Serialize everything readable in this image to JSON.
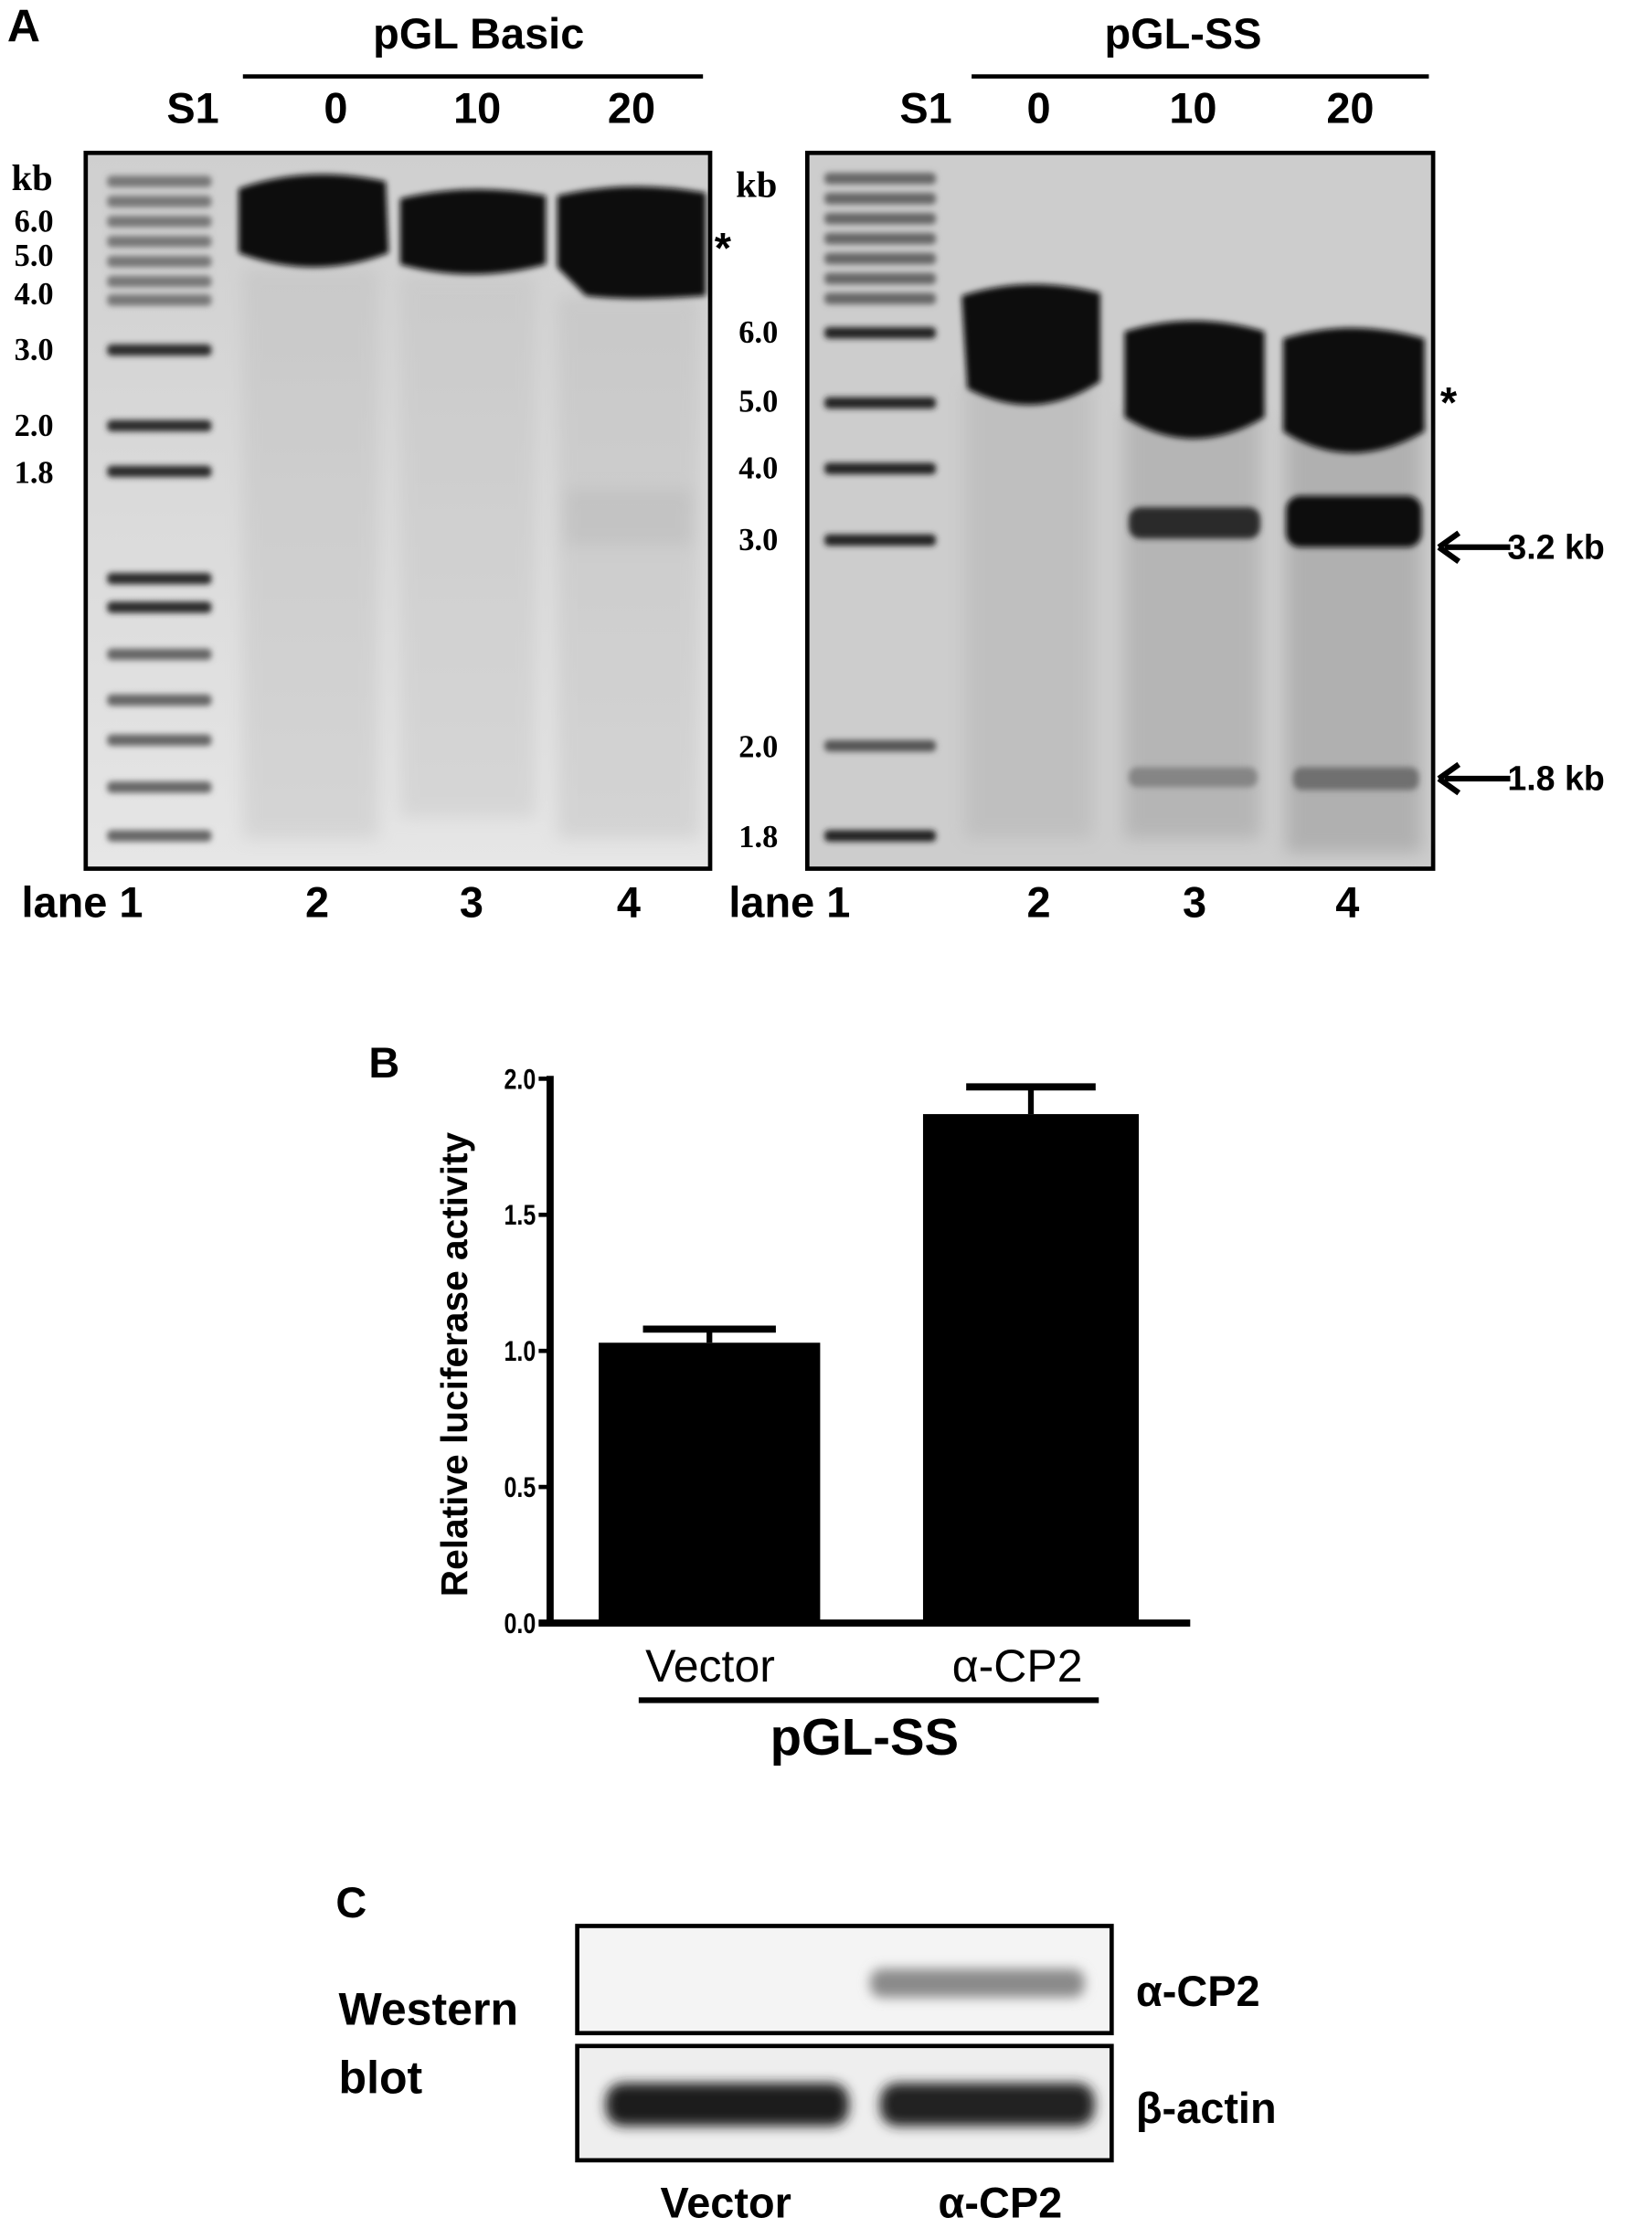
{
  "panel_a": {
    "label": "A",
    "left_gel": {
      "title": "pGL Basic",
      "marker_label": "S1",
      "conditions": [
        "0",
        "10",
        "20"
      ],
      "kb_label": "kb",
      "size_markers": [
        "6.0",
        "5.0",
        "4.0",
        "3.0",
        "2.0",
        "1.8"
      ],
      "lane_label": "lane 1",
      "lane_numbers": [
        "2",
        "3",
        "4"
      ],
      "asterisk": "*"
    },
    "right_gel": {
      "title": "pGL-SS",
      "marker_label": "S1",
      "conditions": [
        "0",
        "10",
        "20"
      ],
      "kb_label": "kb",
      "size_markers": [
        "6.0",
        "5.0",
        "4.0",
        "3.0",
        "2.0",
        "1.8"
      ],
      "lane_label": "lane 1",
      "lane_numbers": [
        "2",
        "3",
        "4"
      ],
      "asterisk": "*",
      "arrow_labels": [
        "3.2 kb",
        "1.8 kb"
      ]
    }
  },
  "panel_b": {
    "label": "B",
    "group_label": "pGL-SS"
  },
  "chart_data": {
    "type": "bar",
    "categories": [
      "Vector",
      "α-CP2"
    ],
    "values": [
      1.03,
      1.87
    ],
    "error_upper": [
      1.08,
      1.97
    ],
    "ylabel": "Relative luciferase activity",
    "xlabel": "",
    "ylim": [
      0,
      2.0
    ],
    "yticks": [
      "0.0",
      "0.5",
      "1.0",
      "1.5",
      "2.0"
    ],
    "bar_color": "#000000",
    "grid": false
  },
  "panel_c": {
    "label": "C",
    "method_label": [
      "Western",
      "blot"
    ],
    "rows": [
      "α-CP2",
      "β-actin"
    ],
    "columns": [
      "Vector",
      "α-CP2"
    ]
  }
}
